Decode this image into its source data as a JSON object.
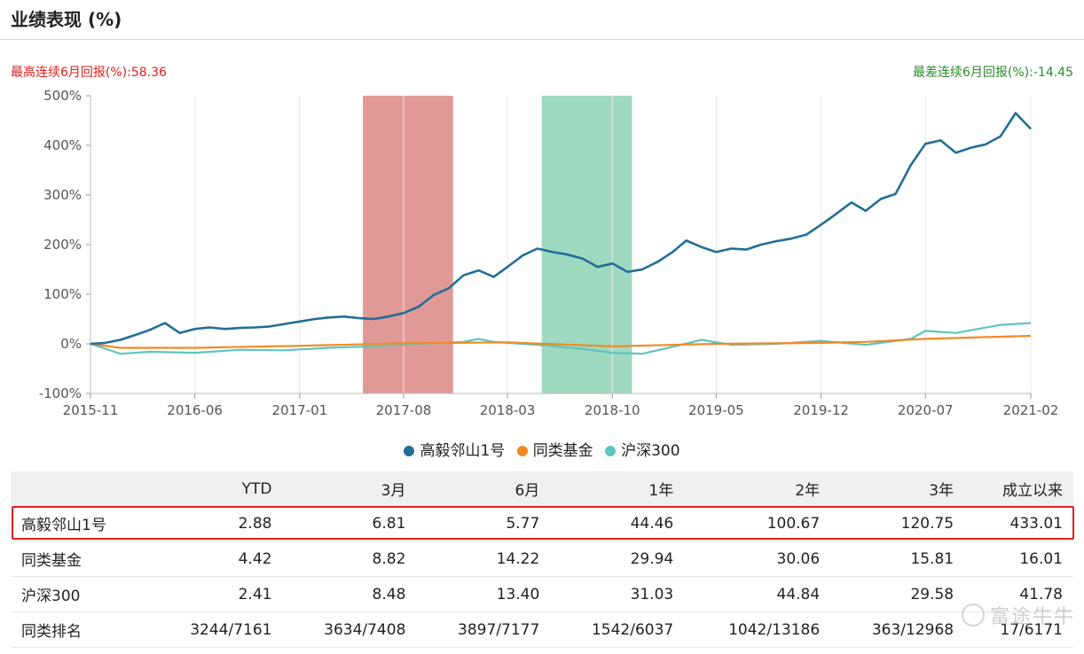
{
  "header": {
    "title": "业绩表现 (%)"
  },
  "stats": {
    "best_label": "最高连续6月回报(%):58.36",
    "worst_label": "最差连续6月回报(%):-14.45"
  },
  "colors": {
    "fund": "#236e96",
    "peer": "#f08a24",
    "index": "#5fc4c0",
    "best_band": "#d9807e",
    "worst_band": "#86d0b0",
    "highlight": "#e02020"
  },
  "chart_data": {
    "type": "line",
    "title": "",
    "xlabel": "",
    "ylabel": "",
    "x_start": "2015-11",
    "x_end": "2021-02",
    "x_ticks": [
      "2015-11",
      "2016-06",
      "2017-01",
      "2017-08",
      "2018-03",
      "2018-10",
      "2019-05",
      "2019-12",
      "2020-07",
      "2021-02"
    ],
    "y_ticks": [
      "500%",
      "400%",
      "300%",
      "200%",
      "100%",
      "0%",
      "-100%"
    ],
    "ylim": [
      -100,
      500
    ],
    "grid": "vertical",
    "legend_position": "bottom-center",
    "bands": [
      {
        "type": "best_6m",
        "start": "2017-05-10",
        "end": "2017-11-10"
      },
      {
        "type": "worst_6m",
        "start": "2018-05-10",
        "end": "2018-11-10"
      }
    ],
    "series": [
      {
        "name": "高毅邻山1号",
        "color_key": "fund",
        "points": [
          [
            "2015-11",
            0
          ],
          [
            "2015-12",
            2
          ],
          [
            "2016-01",
            8
          ],
          [
            "2016-02",
            18
          ],
          [
            "2016-03",
            28
          ],
          [
            "2016-04",
            42
          ],
          [
            "2016-05",
            22
          ],
          [
            "2016-06",
            30
          ],
          [
            "2016-07",
            33
          ],
          [
            "2016-08",
            30
          ],
          [
            "2016-09",
            32
          ],
          [
            "2016-10",
            33
          ],
          [
            "2016-11",
            35
          ],
          [
            "2016-12",
            40
          ],
          [
            "2017-01",
            45
          ],
          [
            "2017-02",
            50
          ],
          [
            "2017-03",
            53
          ],
          [
            "2017-04",
            55
          ],
          [
            "2017-05",
            52
          ],
          [
            "2017-06",
            50
          ],
          [
            "2017-07",
            55
          ],
          [
            "2017-08",
            62
          ],
          [
            "2017-09",
            75
          ],
          [
            "2017-10",
            98
          ],
          [
            "2017-11",
            112
          ],
          [
            "2017-12",
            138
          ],
          [
            "2018-01",
            148
          ],
          [
            "2018-02",
            135
          ],
          [
            "2018-03",
            155
          ],
          [
            "2018-04",
            178
          ],
          [
            "2018-05",
            192
          ],
          [
            "2018-06",
            185
          ],
          [
            "2018-07",
            180
          ],
          [
            "2018-08",
            172
          ],
          [
            "2018-09",
            155
          ],
          [
            "2018-10",
            162
          ],
          [
            "2018-11",
            145
          ],
          [
            "2018-12",
            150
          ],
          [
            "2019-01",
            165
          ],
          [
            "2019-02",
            185
          ],
          [
            "2019-03",
            208
          ],
          [
            "2019-04",
            195
          ],
          [
            "2019-05",
            185
          ],
          [
            "2019-06",
            192
          ],
          [
            "2019-07",
            190
          ],
          [
            "2019-08",
            200
          ],
          [
            "2019-09",
            207
          ],
          [
            "2019-10",
            212
          ],
          [
            "2019-11",
            220
          ],
          [
            "2019-12",
            240
          ],
          [
            "2020-01",
            262
          ],
          [
            "2020-02",
            285
          ],
          [
            "2020-03",
            268
          ],
          [
            "2020-04",
            292
          ],
          [
            "2020-05",
            302
          ],
          [
            "2020-06",
            360
          ],
          [
            "2020-07",
            403
          ],
          [
            "2020-08",
            410
          ],
          [
            "2020-09",
            385
          ],
          [
            "2020-10",
            395
          ],
          [
            "2020-11",
            402
          ],
          [
            "2020-12",
            418
          ],
          [
            "2021-01",
            465
          ],
          [
            "2021-02",
            433
          ]
        ]
      },
      {
        "name": "同类基金",
        "color_key": "peer",
        "points": [
          [
            "2015-11",
            0
          ],
          [
            "2016-01",
            -8
          ],
          [
            "2016-06",
            -8
          ],
          [
            "2017-01",
            -4
          ],
          [
            "2017-08",
            1
          ],
          [
            "2018-03",
            3
          ],
          [
            "2018-10",
            -5
          ],
          [
            "2019-05",
            0
          ],
          [
            "2019-12",
            2
          ],
          [
            "2020-03",
            4
          ],
          [
            "2020-07",
            10
          ],
          [
            "2021-02",
            16
          ]
        ]
      },
      {
        "name": "沪深300",
        "color_key": "index",
        "points": [
          [
            "2015-11",
            0
          ],
          [
            "2016-01",
            -20
          ],
          [
            "2016-03",
            -16
          ],
          [
            "2016-06",
            -18
          ],
          [
            "2016-09",
            -12
          ],
          [
            "2016-12",
            -13
          ],
          [
            "2017-03",
            -8
          ],
          [
            "2017-06",
            -5
          ],
          [
            "2017-09",
            0
          ],
          [
            "2017-12",
            4
          ],
          [
            "2018-01",
            10
          ],
          [
            "2018-02",
            4
          ],
          [
            "2018-03",
            2
          ],
          [
            "2018-05",
            -2
          ],
          [
            "2018-08",
            -10
          ],
          [
            "2018-10",
            -18
          ],
          [
            "2018-12",
            -20
          ],
          [
            "2019-02",
            -6
          ],
          [
            "2019-04",
            8
          ],
          [
            "2019-06",
            -2
          ],
          [
            "2019-09",
            0
          ],
          [
            "2019-12",
            6
          ],
          [
            "2020-03",
            -2
          ],
          [
            "2020-06",
            10
          ],
          [
            "2020-07",
            26
          ],
          [
            "2020-09",
            22
          ],
          [
            "2020-12",
            38
          ],
          [
            "2021-02",
            42
          ]
        ]
      }
    ]
  },
  "table": {
    "headers": [
      "",
      "YTD",
      "3月",
      "6月",
      "1年",
      "2年",
      "3年",
      "成立以来"
    ],
    "rows": [
      [
        "高毅邻山1号",
        "2.88",
        "6.81",
        "5.77",
        "44.46",
        "100.67",
        "120.75",
        "433.01"
      ],
      [
        "同类基金",
        "4.42",
        "8.82",
        "14.22",
        "29.94",
        "30.06",
        "15.81",
        "16.01"
      ],
      [
        "沪深300",
        "2.41",
        "8.48",
        "13.40",
        "31.03",
        "44.84",
        "29.58",
        "41.78"
      ],
      [
        "同类排名",
        "3244/7161",
        "3634/7408",
        "3897/7177",
        "1542/6037",
        "1042/13186",
        "363/12968",
        "17/6171"
      ]
    ]
  },
  "watermark": "富途牛牛"
}
